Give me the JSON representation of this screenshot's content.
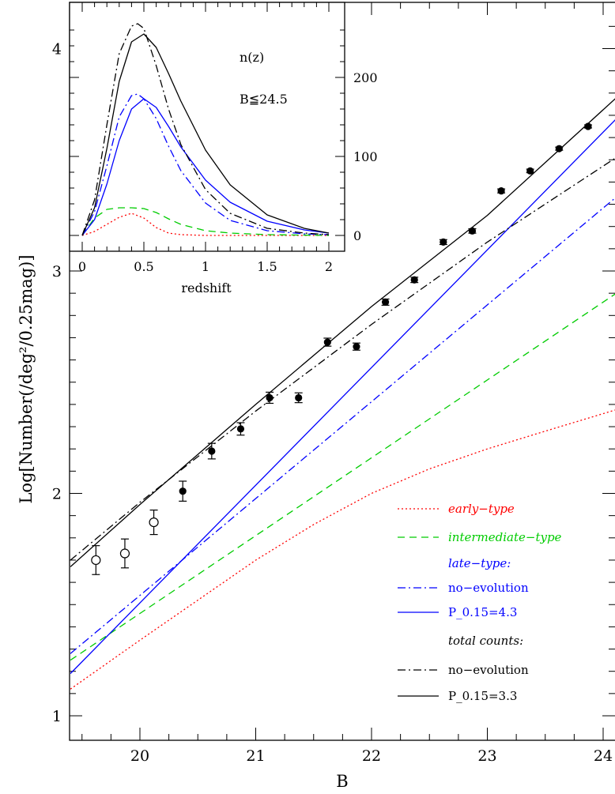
{
  "chart_data": [
    {
      "type": "line",
      "xlabel": "B",
      "ylabel": "Log[Number(/deg²/0.25mag)]",
      "xlim": [
        19.4,
        24.2
      ],
      "ylim": [
        0.92,
        4.2
      ],
      "x_ticks": [
        "20",
        "21",
        "22",
        "23",
        "24"
      ],
      "y_ticks": [
        "1",
        "2",
        "3",
        "4"
      ],
      "colors": {
        "early": "#ff0000",
        "intermediate": "#00cc00",
        "late": "#0000ff",
        "total": "#000000"
      },
      "legend": [
        {
          "label": "early−type",
          "style": "dotted",
          "color": "#ff0000",
          "italic": true,
          "line": true
        },
        {
          "label": "intermediate−type",
          "style": "dashed",
          "color": "#00cc00",
          "italic": true,
          "line": true
        },
        {
          "label": "late−type:",
          "style": "none",
          "color": "#0000ff",
          "italic": true,
          "line": false
        },
        {
          "label": "no−evolution",
          "style": "dashdot",
          "color": "#0000ff",
          "italic": false,
          "line": true
        },
        {
          "label": "P_0.15=4.3",
          "style": "solid",
          "color": "#0000ff",
          "italic": false,
          "line": true
        },
        {
          "label": "total counts:",
          "style": "none",
          "color": "#000000",
          "italic": true,
          "line": false
        },
        {
          "label": "no−evolution",
          "style": "dashdot",
          "color": "#000000",
          "italic": false,
          "line": true
        },
        {
          "label": "P_0.15=3.3",
          "style": "solid",
          "color": "#000000",
          "italic": false,
          "line": true
        }
      ],
      "series": [
        {
          "key": "early",
          "style": "dotted",
          "color": "#ff0000",
          "x": [
            19.4,
            20.0,
            20.5,
            21.0,
            21.5,
            22.0,
            22.5,
            23.0,
            23.5,
            24.2
          ],
          "y": [
            1.12,
            1.34,
            1.52,
            1.7,
            1.86,
            2.0,
            2.11,
            2.2,
            2.28,
            2.39
          ]
        },
        {
          "key": "intermediate",
          "style": "dashed",
          "color": "#00cc00",
          "x": [
            19.4,
            24.2
          ],
          "y": [
            1.25,
            2.93
          ]
        },
        {
          "key": "late-noevol",
          "style": "dashdot",
          "color": "#0000ff",
          "x": [
            19.4,
            24.2
          ],
          "y": [
            1.28,
            3.37
          ]
        },
        {
          "key": "late-evol",
          "style": "solid",
          "color": "#0000ff",
          "x": [
            19.4,
            24.2
          ],
          "y": [
            1.19,
            3.73
          ]
        },
        {
          "key": "total-noevol",
          "style": "dashdot",
          "color": "#000000",
          "x": [
            19.4,
            20.0,
            21.0,
            22.0,
            23.0,
            24.2
          ],
          "y": [
            1.7,
            1.96,
            2.37,
            2.76,
            3.13,
            3.54
          ]
        },
        {
          "key": "total-evol",
          "style": "solid",
          "color": "#000000",
          "x": [
            19.4,
            20.0,
            21.0,
            22.0,
            23.0,
            24.2
          ],
          "y": [
            1.67,
            1.95,
            2.4,
            2.84,
            3.25,
            3.82
          ]
        }
      ],
      "points_open": [
        {
          "x": 19.62,
          "y": 1.7,
          "err": 0.065
        },
        {
          "x": 19.87,
          "y": 1.73,
          "err": 0.065
        },
        {
          "x": 20.12,
          "y": 1.87,
          "err": 0.055
        }
      ],
      "points_filled": [
        {
          "x": 20.37,
          "y": 2.01,
          "err": 0.045
        },
        {
          "x": 20.62,
          "y": 2.19,
          "err": 0.035
        },
        {
          "x": 20.87,
          "y": 2.29,
          "err": 0.028
        },
        {
          "x": 21.12,
          "y": 2.43,
          "err": 0.025
        },
        {
          "x": 21.37,
          "y": 2.43,
          "err": 0.022
        },
        {
          "x": 21.62,
          "y": 2.68,
          "err": 0.018
        },
        {
          "x": 21.87,
          "y": 2.66,
          "err": 0.016
        },
        {
          "x": 22.12,
          "y": 2.86,
          "err": 0.014
        },
        {
          "x": 22.37,
          "y": 2.96,
          "err": 0.012
        },
        {
          "x": 22.62,
          "y": 3.13,
          "err": 0.011
        },
        {
          "x": 22.87,
          "y": 3.18,
          "err": 0.01
        },
        {
          "x": 23.12,
          "y": 3.36,
          "err": 0.009
        },
        {
          "x": 23.37,
          "y": 3.45,
          "err": 0.008
        },
        {
          "x": 23.62,
          "y": 3.55,
          "err": 0.007
        },
        {
          "x": 23.87,
          "y": 3.65,
          "err": 0.007
        }
      ]
    },
    {
      "type": "line",
      "title": "n(z)",
      "subtitle": "B≦24.5",
      "xlabel": "redshift",
      "ylabel": "",
      "xlim": [
        -0.08,
        2.07
      ],
      "ylim": [
        -10,
        275
      ],
      "x_ticks": [
        "0",
        "0.5",
        "1",
        "1.5",
        "2"
      ],
      "y_ticks": [
        "0",
        "100",
        "200"
      ],
      "series": [
        {
          "key": "early",
          "style": "dotted",
          "color": "#ff0000",
          "x": [
            0,
            0.1,
            0.2,
            0.3,
            0.4,
            0.5,
            0.6,
            0.7,
            0.8,
            1.0,
            1.5,
            2.0
          ],
          "y": [
            0,
            5,
            14,
            23,
            28,
            22,
            10,
            3,
            1,
            0,
            0,
            0
          ]
        },
        {
          "key": "intermediate",
          "style": "dashed",
          "color": "#00cc00",
          "x": [
            0,
            0.1,
            0.2,
            0.3,
            0.4,
            0.5,
            0.6,
            0.7,
            0.8,
            1.0,
            1.2,
            1.5,
            2.0
          ],
          "y": [
            0,
            22,
            33,
            35,
            35,
            34,
            29,
            21,
            14,
            6,
            3,
            1,
            0
          ]
        },
        {
          "key": "late-noevol",
          "style": "dashdot",
          "color": "#0000ff",
          "x": [
            0,
            0.1,
            0.2,
            0.3,
            0.4,
            0.45,
            0.5,
            0.6,
            0.7,
            0.8,
            1.0,
            1.2,
            1.5,
            1.8,
            2.0
          ],
          "y": [
            0,
            30,
            88,
            150,
            177,
            179,
            173,
            148,
            113,
            82,
            41,
            19,
            6,
            2,
            1
          ]
        },
        {
          "key": "late-evol",
          "style": "solid",
          "color": "#0000ff",
          "x": [
            0,
            0.1,
            0.2,
            0.3,
            0.4,
            0.5,
            0.6,
            0.7,
            0.8,
            1.0,
            1.2,
            1.5,
            1.8,
            2.0
          ],
          "y": [
            0,
            20,
            65,
            120,
            160,
            173,
            162,
            138,
            112,
            70,
            42,
            18,
            7,
            3
          ]
        },
        {
          "key": "total-noevol",
          "style": "dashdot",
          "color": "#000000",
          "x": [
            0,
            0.1,
            0.2,
            0.3,
            0.4,
            0.45,
            0.5,
            0.6,
            0.7,
            0.8,
            1.0,
            1.2,
            1.5,
            1.8,
            2.0
          ],
          "y": [
            0,
            45,
            140,
            230,
            265,
            268,
            262,
            215,
            160,
            115,
            58,
            28,
            9,
            3,
            1
          ]
        },
        {
          "key": "total-evol",
          "style": "solid",
          "color": "#000000",
          "x": [
            0,
            0.1,
            0.2,
            0.3,
            0.4,
            0.5,
            0.6,
            0.7,
            0.8,
            1.0,
            1.2,
            1.5,
            1.8,
            2.0
          ],
          "y": [
            0,
            35,
            110,
            195,
            245,
            255,
            238,
            205,
            170,
            108,
            64,
            26,
            9,
            3
          ]
        }
      ]
    }
  ]
}
